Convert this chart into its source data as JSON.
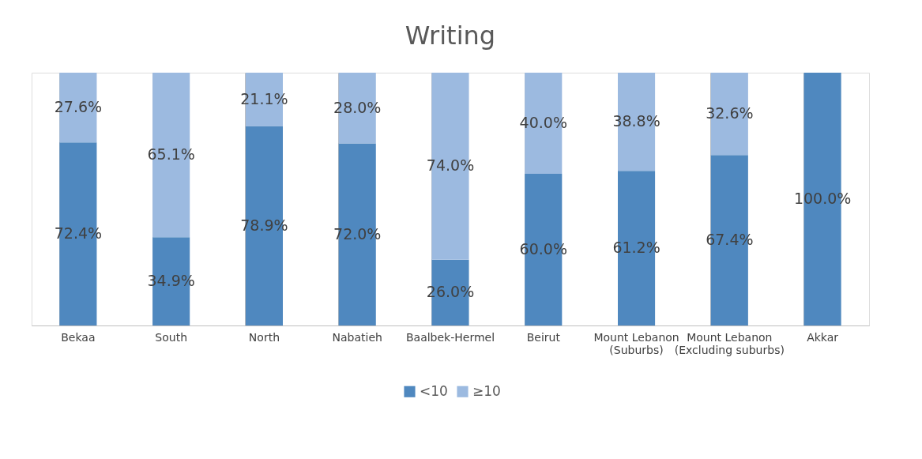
{
  "chart_data": {
    "type": "bar",
    "title": "Writing",
    "stacked": true,
    "categories": [
      "Bekaa",
      "South",
      "North",
      "Nabatieh",
      "Baalbek-Hermel",
      "Beirut",
      "Mount Lebanon (Suburbs)",
      "Mount Lebanon (Excluding suburbs)",
      "Akkar"
    ],
    "series": [
      {
        "name": "<10",
        "color": "#4f88bf",
        "values": [
          72.4,
          34.9,
          78.9,
          72.0,
          26.0,
          60.0,
          61.2,
          67.4,
          100.0
        ],
        "value_labels": [
          "72.4%",
          "34.9%",
          "78.9%",
          "72.0%",
          "26.0%",
          "60.0%",
          "61.2%",
          "67.4%",
          "100.0%"
        ]
      },
      {
        "name": "≥10",
        "color": "#9cbae0",
        "values": [
          27.6,
          65.1,
          21.1,
          28.0,
          74.0,
          40.0,
          38.8,
          32.6,
          0
        ],
        "value_labels": [
          "27.6%",
          "65.1%",
          "21.1%",
          "28.0%",
          "74.0%",
          "40.0%",
          "38.8%",
          "32.6%",
          null
        ]
      }
    ],
    "ylim": [
      0,
      100
    ],
    "tick_labels": "x",
    "grid": "x",
    "legend": "bottom"
  }
}
